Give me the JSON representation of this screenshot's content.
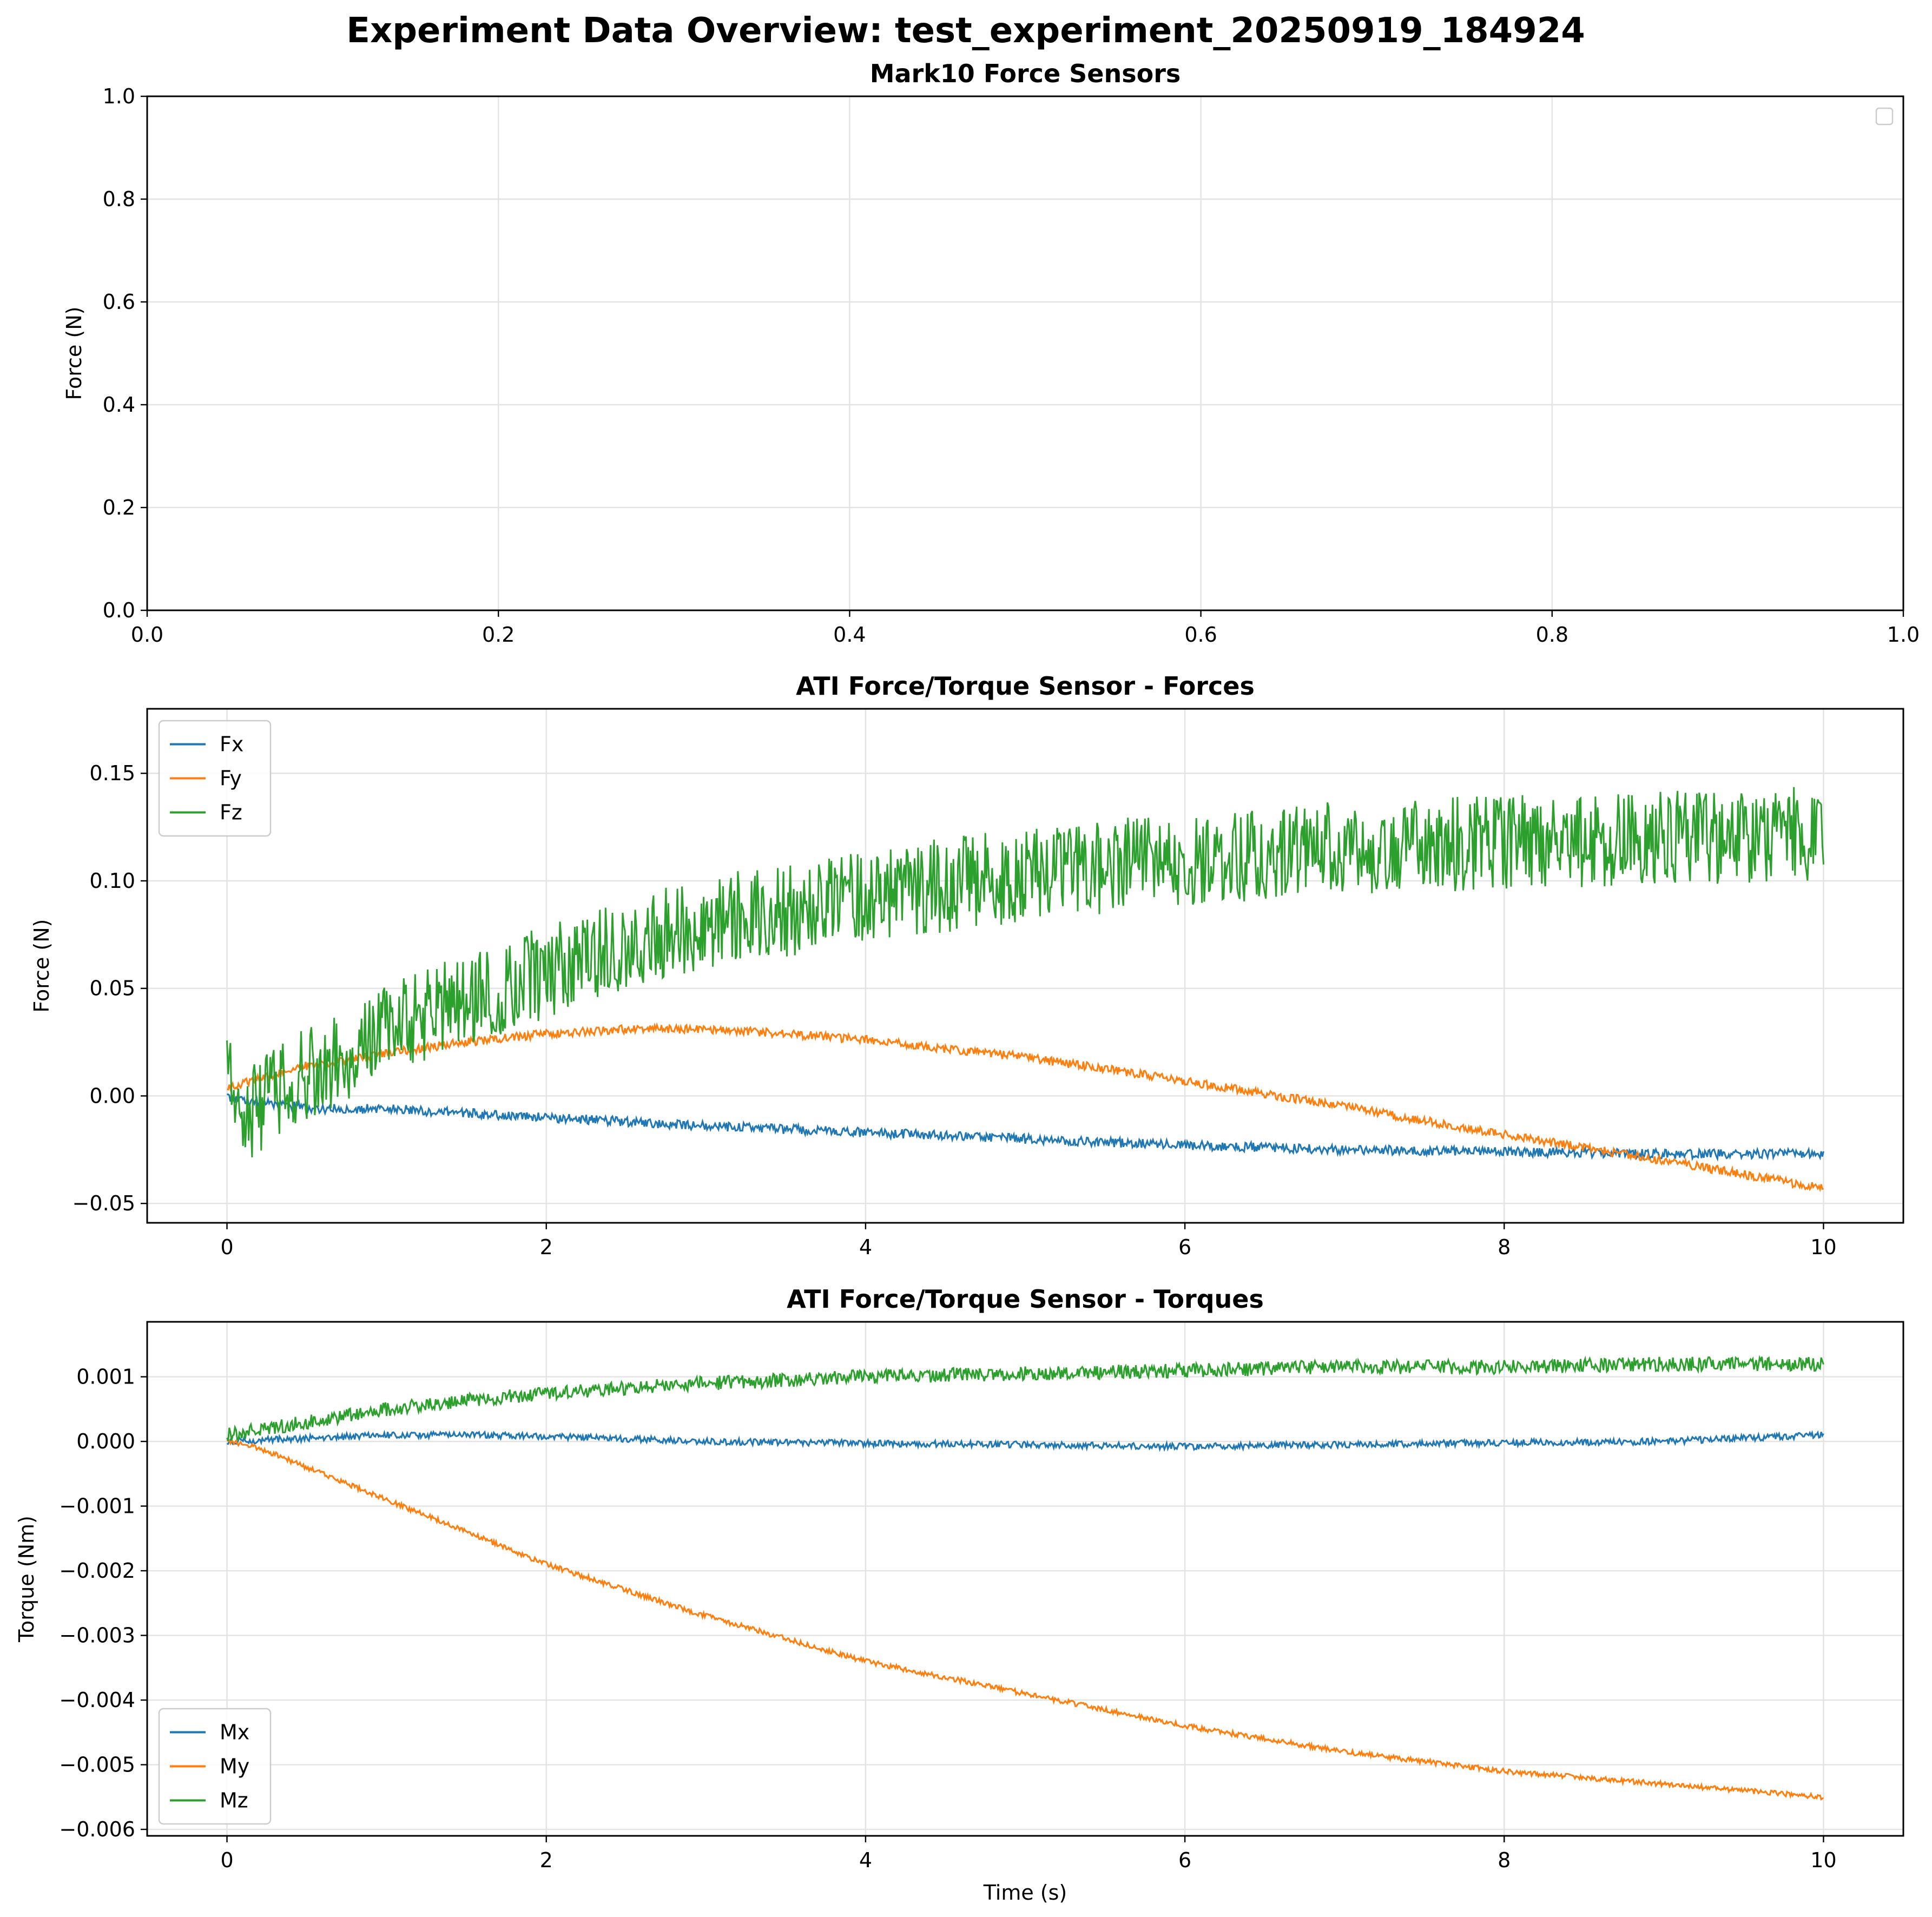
{
  "figure": {
    "title": "Experiment Data Overview: test_experiment_20250919_184924"
  },
  "chart_data": [
    {
      "type": "line",
      "title": "Mark10 Force Sensors",
      "xlabel": "",
      "ylabel": "Force (N)",
      "xlim": [
        0,
        1
      ],
      "ylim": [
        0,
        1
      ],
      "xticks": [
        "0.0",
        "0.2",
        "0.4",
        "0.6",
        "0.8",
        "1.0"
      ],
      "yticks": [
        "0.0",
        "0.2",
        "0.4",
        "0.6",
        "0.8",
        "1.0"
      ],
      "grid": true,
      "legend": "top-right",
      "series": []
    },
    {
      "type": "line",
      "title": "ATI Force/Torque Sensor - Forces",
      "xlabel": "",
      "ylabel": "Force (N)",
      "xlim": [
        -0.5,
        10.5
      ],
      "ylim": [
        -0.059,
        0.18
      ],
      "xticks": [
        "0",
        "2",
        "4",
        "6",
        "8",
        "10"
      ],
      "yticks": [
        "−0.05",
        "0.00",
        "0.05",
        "0.10",
        "0.15"
      ],
      "grid": true,
      "legend": "top-left",
      "series": [
        {
          "name": "Fx",
          "color": "#1f77b4",
          "noise": 0.0022,
          "x": [
            0,
            0.1,
            0.3,
            0.6,
            1,
            1.5,
            2,
            3,
            4,
            5,
            6,
            7,
            8,
            9,
            10
          ],
          "y": [
            0.0,
            -0.002,
            -0.004,
            -0.006,
            -0.006,
            -0.008,
            -0.01,
            -0.014,
            -0.017,
            -0.02,
            -0.023,
            -0.025,
            -0.026,
            -0.027,
            -0.027
          ]
        },
        {
          "name": "Fy",
          "color": "#ff7f0e",
          "noise": 0.002,
          "x": [
            0,
            0.2,
            0.5,
            1,
            1.5,
            2,
            2.5,
            3,
            3.5,
            4,
            5,
            6,
            7,
            8,
            9,
            10
          ],
          "y": [
            0.004,
            0.008,
            0.014,
            0.02,
            0.025,
            0.029,
            0.031,
            0.031,
            0.029,
            0.026,
            0.018,
            0.007,
            -0.005,
            -0.018,
            -0.03,
            -0.043
          ]
        },
        {
          "name": "Fz",
          "color": "#2ca02c",
          "noise": 0.022,
          "x": [
            0,
            0.1,
            0.3,
            0.5,
            1,
            1.5,
            2,
            2.5,
            3,
            4,
            5,
            6,
            7,
            8,
            9,
            10
          ],
          "y": [
            0.02,
            -0.01,
            0.0,
            0.01,
            0.03,
            0.045,
            0.058,
            0.07,
            0.08,
            0.093,
            0.103,
            0.11,
            0.115,
            0.118,
            0.12,
            0.122
          ]
        }
      ]
    },
    {
      "type": "line",
      "title": "ATI Force/Torque Sensor - Torques",
      "xlabel": "Time (s)",
      "ylabel": "Torque (Nm)",
      "xlim": [
        -0.5,
        10.5
      ],
      "ylim": [
        -0.0061,
        0.00185
      ],
      "xticks": [
        "0",
        "2",
        "4",
        "6",
        "8",
        "10"
      ],
      "yticks": [
        "−0.006",
        "−0.005",
        "−0.004",
        "−0.003",
        "−0.002",
        "−0.001",
        "0.000",
        "0.001"
      ],
      "grid": true,
      "legend": "bottom-left",
      "series": [
        {
          "name": "Mx",
          "color": "#1f77b4",
          "noise": 5e-05,
          "x": [
            0,
            0.5,
            1,
            1.5,
            2,
            3,
            4,
            5,
            6,
            7,
            8,
            9,
            10
          ],
          "y": [
            0.0,
            5e-05,
            0.0001,
            0.0001,
            8e-05,
            0.0,
            -3e-05,
            -5e-05,
            -8e-05,
            -5e-05,
            -2e-05,
            0.0,
            0.0001
          ]
        },
        {
          "name": "My",
          "color": "#ff7f0e",
          "noise": 4e-05,
          "x": [
            0,
            0.2,
            0.5,
            1,
            2,
            3,
            4,
            5,
            6,
            7,
            8,
            9,
            10
          ],
          "y": [
            0.0,
            -0.0001,
            -0.0004,
            -0.0009,
            -0.0019,
            -0.0027,
            -0.0034,
            -0.0039,
            -0.0044,
            -0.0048,
            -0.0051,
            -0.0053,
            -0.0055
          ]
        },
        {
          "name": "Mz",
          "color": "#2ca02c",
          "noise": 0.00011,
          "x": [
            0,
            0.5,
            1,
            2,
            3,
            4,
            5,
            6,
            7,
            8,
            9,
            10
          ],
          "y": [
            0.0001,
            0.0003,
            0.0005,
            0.00075,
            0.0009,
            0.001,
            0.00105,
            0.0011,
            0.00115,
            0.00115,
            0.0012,
            0.0012
          ]
        }
      ]
    }
  ]
}
